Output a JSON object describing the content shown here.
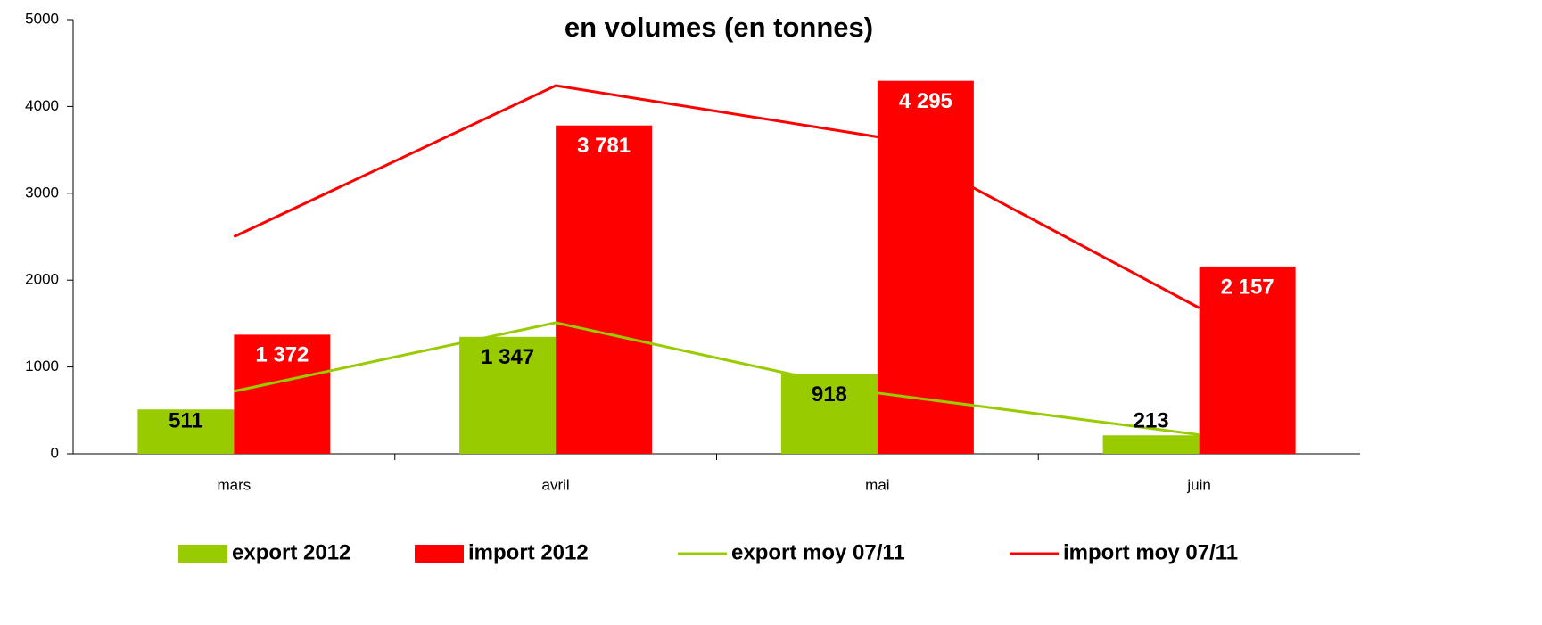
{
  "chart_data": {
    "type": "bar",
    "title": "en volumes (en tonnes)",
    "categories": [
      "mars",
      "avril",
      "mai",
      "juin"
    ],
    "series": [
      {
        "name": "export 2012",
        "type": "bar",
        "color": "#99cc00",
        "values": [
          511,
          1347,
          918,
          213
        ],
        "value_labels": [
          "511",
          "1 347",
          "918",
          "213"
        ],
        "label_color": "#000000"
      },
      {
        "name": "import 2012",
        "type": "bar",
        "color": "#ff0000",
        "values": [
          1372,
          3781,
          4295,
          2157
        ],
        "value_labels": [
          "1 372",
          "3 781",
          "4 295",
          "2 157"
        ],
        "label_color": "#ffffff"
      },
      {
        "name": "export moy 07/11",
        "type": "line",
        "color": "#99cc00",
        "values": [
          720,
          1510,
          700,
          220
        ]
      },
      {
        "name": "import moy 07/11",
        "type": "line",
        "color": "#ff0000",
        "values": [
          2500,
          4240,
          3650,
          1680
        ]
      }
    ],
    "ylim": [
      0,
      5000
    ],
    "yticks": [
      0,
      1000,
      2000,
      3000,
      4000,
      5000
    ],
    "grid": false,
    "legend": "bottom"
  }
}
